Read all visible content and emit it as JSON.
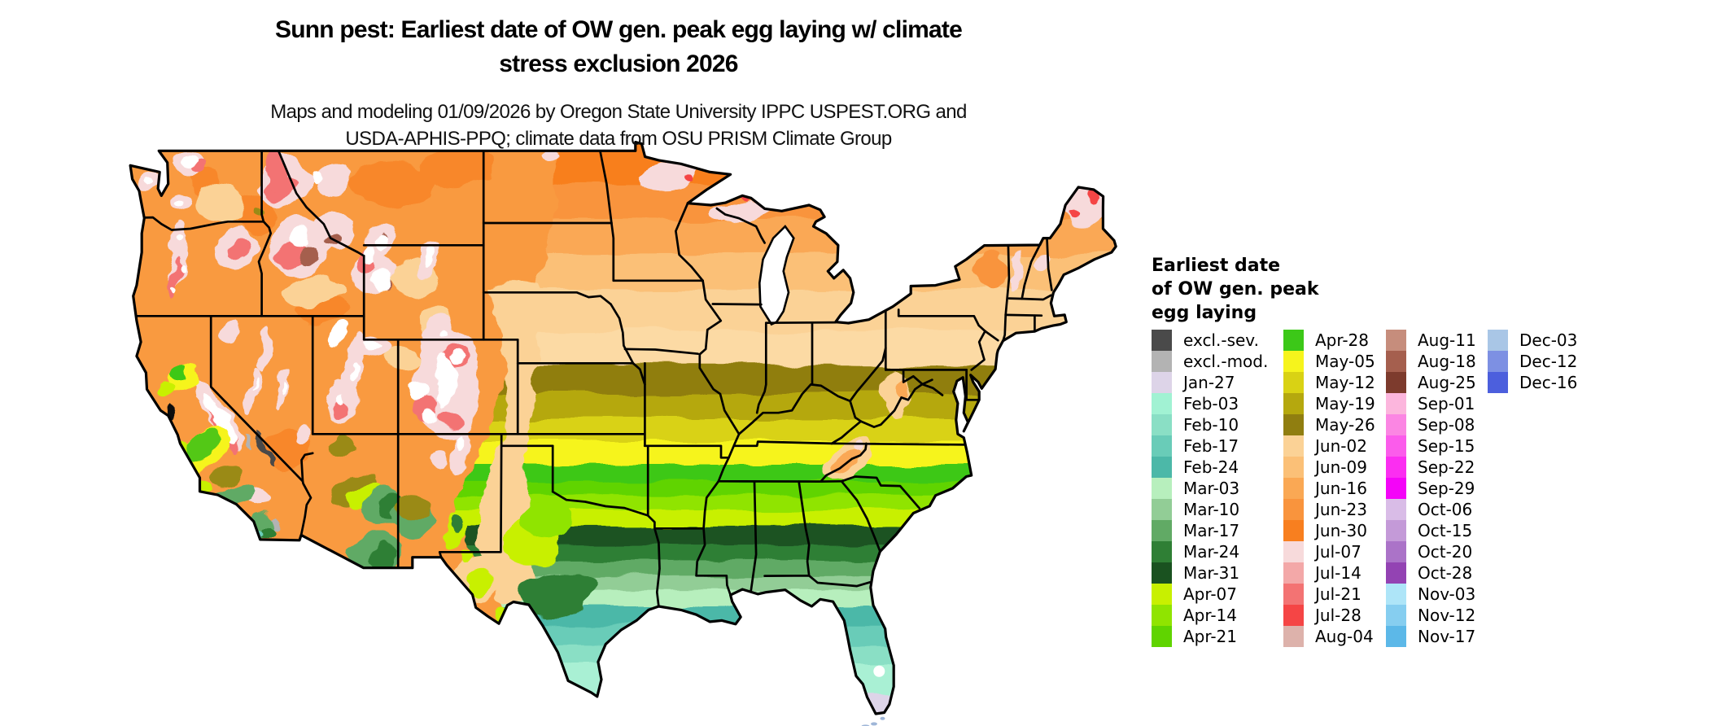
{
  "title": {
    "line1": "Sunn pest: Earliest date of OW gen. peak egg laying w/ climate",
    "line2": "stress exclusion 2026"
  },
  "subtitle": {
    "line1": "Maps and modeling 01/09/2026 by Oregon State University IPPC USPEST.ORG and",
    "line2": "USDA-APHIS-PPQ; climate data from OSU PRISM Climate Group"
  },
  "legend": {
    "title_lines": [
      "Earliest date",
      "of OW gen. peak",
      "egg laying"
    ],
    "columns": [
      {
        "entries": [
          {
            "label": "excl.-sev.",
            "color": "#4a4a4a"
          },
          {
            "label": "excl.-mod.",
            "color": "#b3b3b3"
          },
          {
            "label": "Jan-27",
            "color": "#ddd4e8"
          },
          {
            "label": "Feb-03",
            "color": "#a1f2d3"
          },
          {
            "label": "Feb-10",
            "color": "#8adfc5"
          },
          {
            "label": "Feb-17",
            "color": "#69ccb8"
          },
          {
            "label": "Feb-24",
            "color": "#4cb8a8"
          },
          {
            "label": "Mar-03",
            "color": "#b7efbd"
          },
          {
            "label": "Mar-10",
            "color": "#92cd96"
          },
          {
            "label": "Mar-17",
            "color": "#61aa65"
          },
          {
            "label": "Mar-24",
            "color": "#2f7f35"
          },
          {
            "label": "Mar-31",
            "color": "#1a5220"
          },
          {
            "label": "Apr-07",
            "color": "#c8f000"
          },
          {
            "label": "Apr-14",
            "color": "#90e400"
          },
          {
            "label": "Apr-21",
            "color": "#60d400"
          }
        ]
      },
      {
        "entries": [
          {
            "label": "Apr-28",
            "color": "#3cc818"
          },
          {
            "label": "May-05",
            "color": "#f6f41c"
          },
          {
            "label": "May-12",
            "color": "#d9d214"
          },
          {
            "label": "May-19",
            "color": "#b5a80e"
          },
          {
            "label": "May-26",
            "color": "#907e10"
          },
          {
            "label": "Jun-02",
            "color": "#fbd296"
          },
          {
            "label": "Jun-09",
            "color": "#fbc077"
          },
          {
            "label": "Jun-16",
            "color": "#faa854"
          },
          {
            "label": "Jun-23",
            "color": "#f9943d"
          },
          {
            "label": "Jun-30",
            "color": "#f87f1f"
          },
          {
            "label": "Jul-07",
            "color": "#f7dadb"
          },
          {
            "label": "Jul-14",
            "color": "#f3a8a8"
          },
          {
            "label": "Jul-21",
            "color": "#f37373"
          },
          {
            "label": "Jul-28",
            "color": "#f54545"
          },
          {
            "label": "Aug-04",
            "color": "#ddb2ab"
          }
        ]
      },
      {
        "entries": [
          {
            "label": "Aug-11",
            "color": "#c68d7c"
          },
          {
            "label": "Aug-18",
            "color": "#a55f4e"
          },
          {
            "label": "Aug-25",
            "color": "#7d3b2d"
          },
          {
            "label": "Sep-01",
            "color": "#fcb6dd"
          },
          {
            "label": "Sep-08",
            "color": "#fb86e3"
          },
          {
            "label": "Sep-15",
            "color": "#fb5ceb"
          },
          {
            "label": "Sep-22",
            "color": "#fb2ef1"
          },
          {
            "label": "Sep-29",
            "color": "#f404f8"
          },
          {
            "label": "Oct-06",
            "color": "#d9bce7"
          },
          {
            "label": "Oct-15",
            "color": "#c49ad8"
          },
          {
            "label": "Oct-20",
            "color": "#ab73c8"
          },
          {
            "label": "Oct-28",
            "color": "#9343b3"
          },
          {
            "label": "Nov-03",
            "color": "#aee5f8"
          },
          {
            "label": "Nov-12",
            "color": "#86cef0"
          },
          {
            "label": "Nov-17",
            "color": "#5cb8e8"
          }
        ]
      },
      {
        "entries": [
          {
            "label": "Dec-03",
            "color": "#a9c6e6"
          },
          {
            "label": "Dec-12",
            "color": "#7d90e3"
          },
          {
            "label": "Dec-16",
            "color": "#4c5fdd"
          }
        ]
      }
    ]
  }
}
